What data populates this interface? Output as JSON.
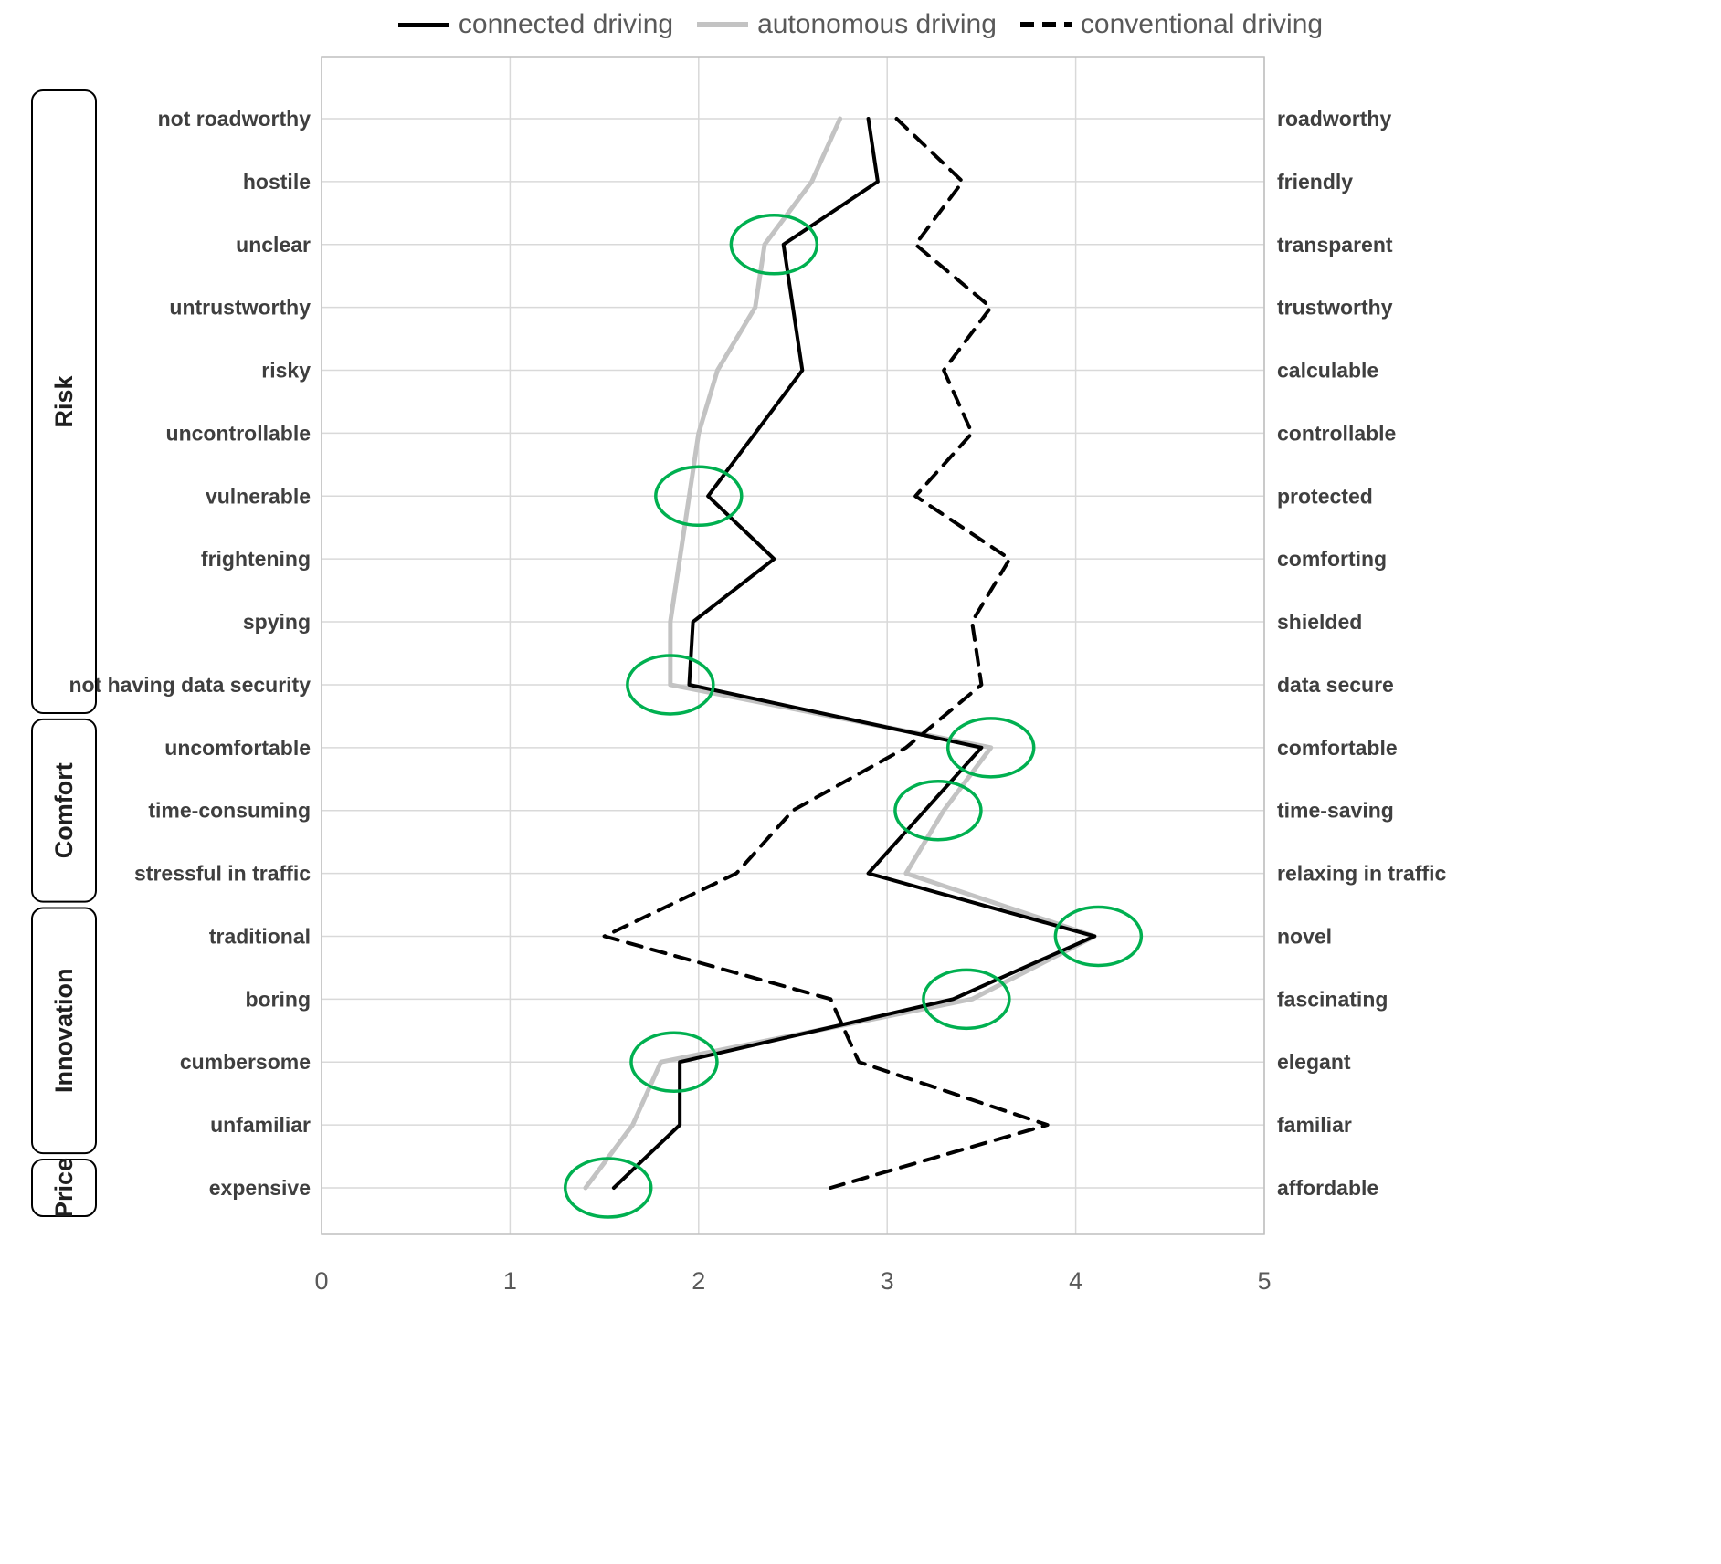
{
  "legend": [
    {
      "label": "connected driving",
      "style": "solid",
      "color": "#000000"
    },
    {
      "label": "autonomous driving",
      "style": "solid",
      "color": "#c3c3c3"
    },
    {
      "label": "conventional driving",
      "style": "dashed",
      "color": "#000000"
    }
  ],
  "chart_data": {
    "type": "line",
    "orientation": "horizontal-value-vertical-categories",
    "title": "",
    "xlabel": "",
    "ylabel": "",
    "xlim": [
      0,
      5
    ],
    "xticks": [
      "0",
      "1",
      "2",
      "3",
      "4",
      "5"
    ],
    "grid": true,
    "legend_position": "top-center",
    "categories": [
      {
        "left": "not roadworthy",
        "right": "roadworthy",
        "group": "Risk"
      },
      {
        "left": "hostile",
        "right": "friendly",
        "group": "Risk"
      },
      {
        "left": "unclear",
        "right": "transparent",
        "group": "Risk"
      },
      {
        "left": "untrustworthy",
        "right": "trustworthy",
        "group": "Risk"
      },
      {
        "left": "risky",
        "right": "calculable",
        "group": "Risk"
      },
      {
        "left": "uncontrollable",
        "right": "controllable",
        "group": "Risk"
      },
      {
        "left": "vulnerable",
        "right": "protected",
        "group": "Risk"
      },
      {
        "left": "frightening",
        "right": "comforting",
        "group": "Risk"
      },
      {
        "left": "spying",
        "right": "shielded",
        "group": "Risk"
      },
      {
        "left": "not having data security",
        "right": "data secure",
        "group": "Risk"
      },
      {
        "left": "uncomfortable",
        "right": "comfortable",
        "group": "Comfort"
      },
      {
        "left": "time-consuming",
        "right": "time-saving",
        "group": "Comfort"
      },
      {
        "left": "stressful in traffic",
        "right": "relaxing in traffic",
        "group": "Comfort"
      },
      {
        "left": "traditional",
        "right": "novel",
        "group": "Innovation"
      },
      {
        "left": "boring",
        "right": "fascinating",
        "group": "Innovation"
      },
      {
        "left": "cumbersome",
        "right": "elegant",
        "group": "Innovation"
      },
      {
        "left": "unfamiliar",
        "right": "familiar",
        "group": "Innovation"
      },
      {
        "left": "expensive",
        "right": "affordable",
        "group": "Price"
      }
    ],
    "groups": [
      {
        "label": "Risk",
        "from": 0,
        "to": 9
      },
      {
        "label": "Comfort",
        "from": 10,
        "to": 12
      },
      {
        "label": "Innovation",
        "from": 13,
        "to": 16
      },
      {
        "label": "Price",
        "from": 17,
        "to": 17
      }
    ],
    "series": [
      {
        "name": "connected driving",
        "color": "#000000",
        "dash": "solid",
        "width": 4,
        "values": [
          2.9,
          2.95,
          2.45,
          2.5,
          2.55,
          2.3,
          2.05,
          2.4,
          1.97,
          1.95,
          3.5,
          3.2,
          2.9,
          4.1,
          3.35,
          1.9,
          1.9,
          1.55
        ]
      },
      {
        "name": "autonomous driving",
        "color": "#c3c3c3",
        "dash": "solid",
        "width": 5,
        "values": [
          2.75,
          2.6,
          2.35,
          2.3,
          2.1,
          2.0,
          1.95,
          1.9,
          1.85,
          1.85,
          3.55,
          3.3,
          3.1,
          4.1,
          3.45,
          1.8,
          1.65,
          1.4
        ]
      },
      {
        "name": "conventional driving",
        "color": "#000000",
        "dash": "dashed",
        "width": 4,
        "values": [
          3.05,
          3.4,
          3.15,
          3.55,
          3.3,
          3.45,
          3.15,
          3.65,
          3.45,
          3.5,
          3.1,
          2.5,
          2.2,
          1.5,
          2.7,
          2.85,
          3.85,
          2.7
        ]
      }
    ],
    "highlights": [
      {
        "row": 2,
        "x": 2.4
      },
      {
        "row": 6,
        "x": 2.0
      },
      {
        "row": 9,
        "x": 1.85
      },
      {
        "row": 10,
        "x": 3.55
      },
      {
        "row": 11,
        "x": 3.27
      },
      {
        "row": 13,
        "x": 4.12
      },
      {
        "row": 14,
        "x": 3.42
      },
      {
        "row": 15,
        "x": 1.87
      },
      {
        "row": 17,
        "x": 1.52
      }
    ],
    "highlight_color": "#00b050",
    "gridline_color": "#d9d9d9",
    "border_color": "#bfbfbf"
  }
}
